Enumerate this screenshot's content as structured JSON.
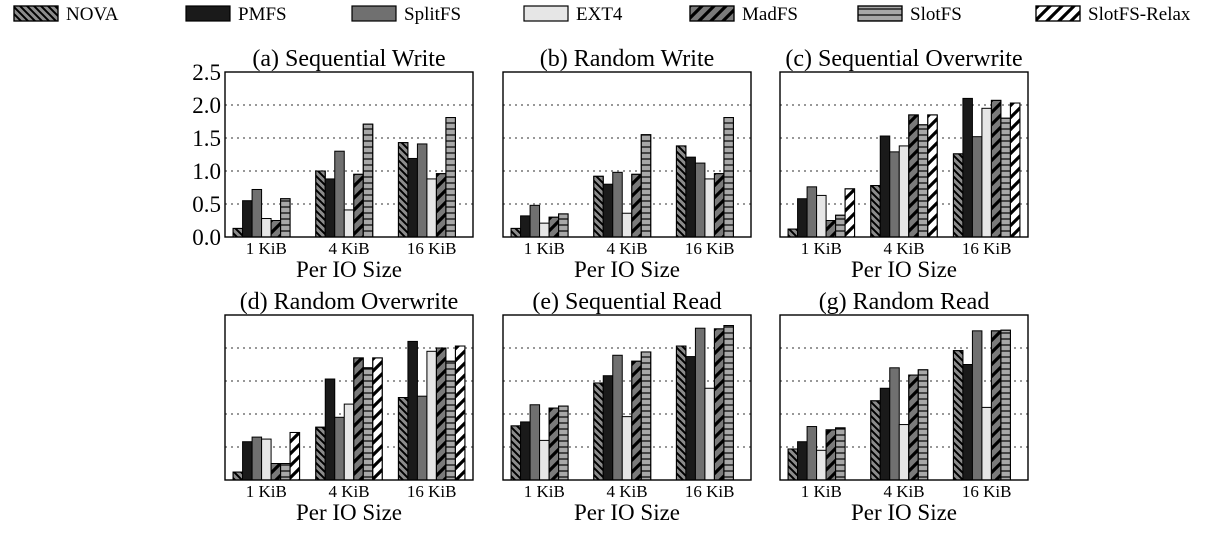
{
  "legend": [
    {
      "name": "NOVA",
      "fill": "#8c8c8c",
      "pattern": "diag-back"
    },
    {
      "name": "PMFS",
      "fill": "#1a1a1a",
      "pattern": "none"
    },
    {
      "name": "SplitFS",
      "fill": "#707070",
      "pattern": "none"
    },
    {
      "name": "EXT4",
      "fill": "#e6e6e6",
      "pattern": "none"
    },
    {
      "name": "MadFS",
      "fill": "#7a7a7a",
      "pattern": "diag-fwd-bold"
    },
    {
      "name": "SlotFS",
      "fill": "#a8a8a8",
      "pattern": "horizontal"
    },
    {
      "name": "SlotFS-Relax",
      "fill": "#ffffff",
      "pattern": "diag-fwd-bold"
    }
  ],
  "chart_data": [
    {
      "type": "bar",
      "title": "(a) Sequential Write",
      "xlabel": "Per IO Size",
      "categories": [
        "1 KiB",
        "4 KiB",
        "16 KiB"
      ],
      "ylim": [
        0,
        2.5
      ],
      "yticks": [
        "0.0",
        "0.5",
        "1.0",
        "1.5",
        "2.0",
        "2.5"
      ],
      "grid": true,
      "series": [
        {
          "name": "NOVA",
          "values": [
            0.13,
            1.0,
            1.43
          ]
        },
        {
          "name": "PMFS",
          "values": [
            0.55,
            0.88,
            1.19
          ]
        },
        {
          "name": "SplitFS",
          "values": [
            0.72,
            1.3,
            1.41
          ]
        },
        {
          "name": "EXT4",
          "values": [
            0.28,
            0.41,
            0.88
          ]
        },
        {
          "name": "MadFS",
          "values": [
            0.25,
            0.95,
            0.96
          ]
        },
        {
          "name": "SlotFS",
          "values": [
            0.58,
            1.71,
            1.81
          ]
        },
        {
          "name": "SlotFS-Relax",
          "values": [
            0.0,
            0.0,
            0.0
          ]
        }
      ]
    },
    {
      "type": "bar",
      "title": "(b) Random Write",
      "xlabel": "Per IO Size",
      "categories": [
        "1 KiB",
        "4 KiB",
        "16 KiB"
      ],
      "ylim": [
        0,
        2.5
      ],
      "grid": true,
      "series": [
        {
          "name": "NOVA",
          "values": [
            0.13,
            0.92,
            1.38
          ]
        },
        {
          "name": "PMFS",
          "values": [
            0.32,
            0.8,
            1.21
          ]
        },
        {
          "name": "SplitFS",
          "values": [
            0.48,
            0.98,
            1.12
          ]
        },
        {
          "name": "EXT4",
          "values": [
            0.21,
            0.36,
            0.88
          ]
        },
        {
          "name": "MadFS",
          "values": [
            0.3,
            0.95,
            0.96
          ]
        },
        {
          "name": "SlotFS",
          "values": [
            0.35,
            1.55,
            1.81
          ]
        },
        {
          "name": "SlotFS-Relax",
          "values": [
            0.0,
            0.0,
            0.0
          ]
        }
      ]
    },
    {
      "type": "bar",
      "title": "(c) Sequential Overwrite",
      "xlabel": "Per IO Size",
      "categories": [
        "1 KiB",
        "4 KiB",
        "16 KiB"
      ],
      "ylim": [
        0,
        2.5
      ],
      "grid": true,
      "series": [
        {
          "name": "NOVA",
          "values": [
            0.12,
            0.78,
            1.26
          ]
        },
        {
          "name": "PMFS",
          "values": [
            0.58,
            1.53,
            2.1
          ]
        },
        {
          "name": "SplitFS",
          "values": [
            0.76,
            1.29,
            1.52
          ]
        },
        {
          "name": "EXT4",
          "values": [
            0.63,
            1.38,
            1.95
          ]
        },
        {
          "name": "MadFS",
          "values": [
            0.25,
            1.85,
            2.07
          ]
        },
        {
          "name": "SlotFS",
          "values": [
            0.33,
            1.7,
            1.8
          ]
        },
        {
          "name": "SlotFS-Relax",
          "values": [
            0.73,
            1.85,
            2.03
          ]
        }
      ]
    },
    {
      "type": "bar",
      "title": "(d) Random Overwrite",
      "xlabel": "Per IO Size",
      "categories": [
        "1 KiB",
        "4 KiB",
        "16 KiB"
      ],
      "ylim": [
        0,
        2.5
      ],
      "grid": true,
      "series": [
        {
          "name": "NOVA",
          "values": [
            0.12,
            0.8,
            1.25
          ]
        },
        {
          "name": "PMFS",
          "values": [
            0.58,
            1.53,
            2.1
          ]
        },
        {
          "name": "SplitFS",
          "values": [
            0.65,
            0.95,
            1.27
          ]
        },
        {
          "name": "EXT4",
          "values": [
            0.62,
            1.15,
            1.95
          ]
        },
        {
          "name": "MadFS",
          "values": [
            0.25,
            1.85,
            2.0
          ]
        },
        {
          "name": "SlotFS",
          "values": [
            0.25,
            1.7,
            1.8
          ]
        },
        {
          "name": "SlotFS-Relax",
          "values": [
            0.72,
            1.85,
            2.03
          ]
        }
      ]
    },
    {
      "type": "bar",
      "title": "(e) Sequential Read",
      "xlabel": "Per IO Size",
      "categories": [
        "1 KiB",
        "4 KiB",
        "16 KiB"
      ],
      "ylim": [
        0,
        2.5
      ],
      "grid": true,
      "series": [
        {
          "name": "NOVA",
          "values": [
            0.82,
            1.47,
            2.03
          ]
        },
        {
          "name": "PMFS",
          "values": [
            0.88,
            1.58,
            1.87
          ]
        },
        {
          "name": "SplitFS",
          "values": [
            1.14,
            1.89,
            2.3
          ]
        },
        {
          "name": "EXT4",
          "values": [
            0.6,
            0.96,
            1.39
          ]
        },
        {
          "name": "MadFS",
          "values": [
            1.09,
            1.8,
            2.29
          ]
        },
        {
          "name": "SlotFS",
          "values": [
            1.12,
            1.94,
            2.34
          ]
        },
        {
          "name": "SlotFS-Relax",
          "values": [
            0.0,
            0.0,
            0.0
          ]
        }
      ]
    },
    {
      "type": "bar",
      "title": "(g) Random Read",
      "xlabel": "Per IO Size",
      "categories": [
        "1 KiB",
        "4 KiB",
        "16 KiB"
      ],
      "ylim": [
        0,
        2.5
      ],
      "grid": true,
      "series": [
        {
          "name": "NOVA",
          "values": [
            0.47,
            1.2,
            1.96
          ]
        },
        {
          "name": "PMFS",
          "values": [
            0.58,
            1.39,
            1.75
          ]
        },
        {
          "name": "SplitFS",
          "values": [
            0.81,
            1.7,
            2.26
          ]
        },
        {
          "name": "EXT4",
          "values": [
            0.45,
            0.84,
            1.1
          ]
        },
        {
          "name": "MadFS",
          "values": [
            0.76,
            1.59,
            2.26
          ]
        },
        {
          "name": "SlotFS",
          "values": [
            0.79,
            1.67,
            2.27
          ]
        },
        {
          "name": "SlotFS-Relax",
          "values": [
            0.0,
            0.0,
            0.0
          ]
        }
      ]
    }
  ]
}
